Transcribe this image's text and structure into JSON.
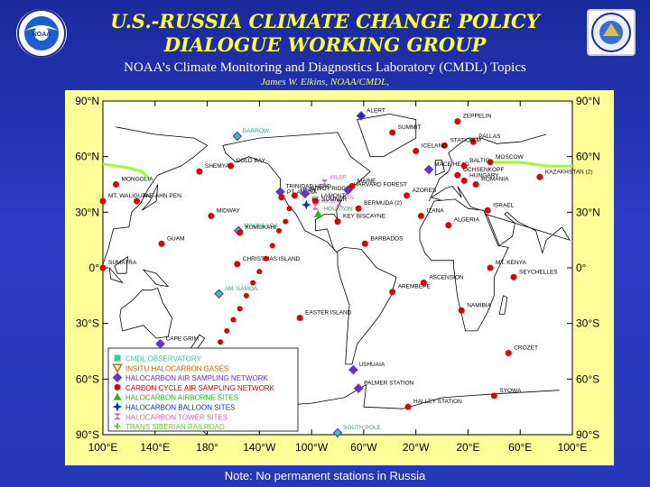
{
  "header": {
    "title_line1": "U.S.-RUSSIA CLIMATE CHANGE POLICY",
    "title_line2": "DIALOGUE WORKING GROUP",
    "subtitle": "NOAA’s Climate Monitoring and Diagnostics Laboratory (CMDL) Topics",
    "author": "James W. Elkins, NOAA/CMDL,"
  },
  "logos": {
    "left": "noaa-logo",
    "right": "department-of-commerce-seal"
  },
  "footer": {
    "note": "Note: No permanent stations in Russia"
  },
  "colors": {
    "background": "#2438b8",
    "title": "#ffff33",
    "frame": "#ffff99",
    "station": "#e00000",
    "cmdl": "#33cc99",
    "halocarbon_air": "#6633cc",
    "airborne": "#22bb22",
    "balloon": "#0033cc",
    "tower": "#cc66cc",
    "railroad": "#99ff33"
  },
  "map": {
    "lat_labels": [
      "90°N",
      "60°N",
      "30°N",
      "0°",
      "30°S",
      "60°S",
      "90°S"
    ],
    "lon_labels": [
      "100°E",
      "140°E",
      "180°",
      "140°W",
      "100°W",
      "60°W",
      "20°W",
      "20°E",
      "60°E",
      "100°E"
    ],
    "legend": [
      {
        "symbol": "square",
        "color": "#33cc99",
        "label": "CMDL OBSERVATORY"
      },
      {
        "symbol": "tri-down",
        "color": "#cc6600",
        "label": "INSITU HALOCARBON GASES"
      },
      {
        "symbol": "diamond",
        "color": "#6633cc",
        "label": "HALOCARBON AIR SAMPLING NETWORK"
      },
      {
        "symbol": "circle",
        "color": "#e00000",
        "label": "CARBON CYCLE AIR SAMPLING NETWORK"
      },
      {
        "symbol": "tri-up",
        "color": "#22bb22",
        "label": "HALOCARBON AIRBORNE SITES"
      },
      {
        "symbol": "star",
        "color": "#0033cc",
        "label": "HALOCARBON BALLOON SITES"
      },
      {
        "symbol": "hourglass",
        "color": "#cc66cc",
        "label": "HALOCARBON TOWER SITES"
      },
      {
        "symbol": "plus",
        "color": "#66cc33",
        "label": "TRANS SIBERIAN RAILROAD"
      }
    ],
    "stations": [
      {
        "name": "ALERT",
        "lon": -62,
        "lat": 82,
        "type": "diamond",
        "color": "#0033cc"
      },
      {
        "name": "BARROW",
        "lon": -157,
        "lat": 71,
        "type": "diamond",
        "color": "#33cc99"
      },
      {
        "name": "ZEPPELIN",
        "lon": 12,
        "lat": 79,
        "type": "circle",
        "color": "#e00000"
      },
      {
        "name": "SUMMIT",
        "lon": -38,
        "lat": 73,
        "type": "circle",
        "color": "#e00000"
      },
      {
        "name": "PALLAS",
        "lon": 24,
        "lat": 68,
        "type": "circle",
        "color": "#e00000"
      },
      {
        "name": "STATION M",
        "lon": 2,
        "lat": 66,
        "type": "circle",
        "color": "#e00000"
      },
      {
        "name": "ICELAND",
        "lon": -20,
        "lat": 63,
        "type": "circle",
        "color": "#e00000"
      },
      {
        "name": "MACE HEAD",
        "lon": -10,
        "lat": 53,
        "type": "diamond",
        "color": "#6633cc"
      },
      {
        "name": "BALTIC",
        "lon": 17,
        "lat": 55,
        "type": "circle",
        "color": "#e00000"
      },
      {
        "name": "MOSCOW",
        "lon": 37,
        "lat": 57,
        "type": "circle",
        "color": "#e00000"
      },
      {
        "name": "OCHSENKOPF",
        "lon": 12,
        "lat": 50,
        "type": "circle",
        "color": "#e00000"
      },
      {
        "name": "HUNGARY",
        "lon": 17,
        "lat": 47,
        "type": "circle",
        "color": "#e00000"
      },
      {
        "name": "ROMANIA",
        "lon": 26,
        "lat": 45,
        "type": "circle",
        "color": "#e00000"
      },
      {
        "name": "KAZAKHSTAN (2)",
        "lon": 75,
        "lat": 49,
        "type": "circle",
        "color": "#e00000"
      },
      {
        "name": "MT. WALIGUAN",
        "lon": 100,
        "lat": 36,
        "type": "circle",
        "color": "#e00000"
      },
      {
        "name": "MONGOLIA",
        "lon": 110,
        "lat": 45,
        "type": "circle",
        "color": "#e00000"
      },
      {
        "name": "TAE-AHN PEN.",
        "lon": 126,
        "lat": 36,
        "type": "circle",
        "color": "#e00000"
      },
      {
        "name": "SHEMYA",
        "lon": 174,
        "lat": 52,
        "type": "circle",
        "color": "#e00000"
      },
      {
        "name": "COLD BAY",
        "lon": -162,
        "lat": 55,
        "type": "circle",
        "color": "#e00000"
      },
      {
        "name": "TRINIDAD HEAD",
        "lon": -124,
        "lat": 41,
        "type": "diamond",
        "color": "#6633cc"
      },
      {
        "name": "PT. ARENA",
        "lon": -123,
        "lat": 38,
        "type": "circle",
        "color": "#e00000"
      },
      {
        "name": "UTAH",
        "lon": -113,
        "lat": 39,
        "type": "circle",
        "color": "#e00000"
      },
      {
        "name": "NIWOT RIDGE",
        "lon": -105,
        "lat": 40,
        "type": "diamond",
        "color": "#6633cc"
      },
      {
        "name": "WLEF",
        "lon": -90,
        "lat": 46,
        "type": "hourglass",
        "color": "#cc66cc"
      },
      {
        "name": "LAMONT",
        "lon": -97,
        "lat": 36,
        "type": "circle",
        "color": "#e00000"
      },
      {
        "name": "HARVARD FOREST",
        "lon": -72,
        "lat": 42,
        "type": "diamond",
        "color": "#6633cc"
      },
      {
        "name": "MAINE",
        "lon": -69,
        "lat": 44,
        "type": "circle",
        "color": "#e00000"
      },
      {
        "name": "WKWT",
        "lon": -97,
        "lat": 33,
        "type": "hourglass",
        "color": "#cc66cc"
      },
      {
        "name": "ITN",
        "lon": -79,
        "lat": 35,
        "type": "hourglass",
        "color": "#cc66cc"
      },
      {
        "name": "FT. SUMNER",
        "lon": -104,
        "lat": 34,
        "type": "star",
        "color": "#0033cc"
      },
      {
        "name": "HOUSTON",
        "lon": -95,
        "lat": 29,
        "type": "tri-up",
        "color": "#22bb22"
      },
      {
        "name": "KEY BISCAYNE",
        "lon": -80,
        "lat": 25,
        "type": "circle",
        "color": "#e00000"
      },
      {
        "name": "BERMUDA (2)",
        "lon": -64,
        "lat": 32,
        "type": "circle",
        "color": "#e00000"
      },
      {
        "name": "AZORES",
        "lon": -27,
        "lat": 39,
        "type": "circle",
        "color": "#e00000"
      },
      {
        "name": "IZANA",
        "lon": -16,
        "lat": 28,
        "type": "circle",
        "color": "#e00000"
      },
      {
        "name": "ALGERIA",
        "lon": 5,
        "lat": 23,
        "type": "circle",
        "color": "#e00000"
      },
      {
        "name": "ISRAEL",
        "lon": 35,
        "lat": 31,
        "type": "circle",
        "color": "#e00000"
      },
      {
        "name": "BARBADOS",
        "lon": -59,
        "lat": 13,
        "type": "circle",
        "color": "#e00000"
      },
      {
        "name": "MIDWAY",
        "lon": -177,
        "lat": 28,
        "type": "circle",
        "color": "#e00000"
      },
      {
        "name": "MAUNA LOA",
        "lon": -156,
        "lat": 20,
        "type": "diamond",
        "color": "#33cc99"
      },
      {
        "name": "KUMUKAHI",
        "lon": -155,
        "lat": 19,
        "type": "circle",
        "color": "#e00000"
      },
      {
        "name": "GUAM",
        "lon": 145,
        "lat": 13,
        "type": "circle",
        "color": "#e00000"
      },
      {
        "name": "CHRISTMAS ISLAND",
        "lon": -157,
        "lat": 2,
        "type": "circle",
        "color": "#e00000"
      },
      {
        "name": "SUMATRA",
        "lon": 100,
        "lat": 0,
        "type": "circle",
        "color": "#e00000"
      },
      {
        "name": "AM. SAMOA",
        "lon": -171,
        "lat": -14,
        "type": "diamond",
        "color": "#33cc99"
      },
      {
        "name": "ASCENSION",
        "lon": -14,
        "lat": -8,
        "type": "circle",
        "color": "#e00000"
      },
      {
        "name": "MT. KENYA",
        "lon": 37,
        "lat": 0,
        "type": "circle",
        "color": "#e00000"
      },
      {
        "name": "SEYCHELLES",
        "lon": 55,
        "lat": -5,
        "type": "circle",
        "color": "#e00000"
      },
      {
        "name": "AREMBEPE",
        "lon": -38,
        "lat": -13,
        "type": "circle",
        "color": "#e00000"
      },
      {
        "name": "NAMIBIA",
        "lon": 15,
        "lat": -23,
        "type": "circle",
        "color": "#e00000"
      },
      {
        "name": "EASTER ISLAND",
        "lon": -109,
        "lat": -27,
        "type": "circle",
        "color": "#e00000"
      },
      {
        "name": "CAPE GRIM",
        "lon": 144,
        "lat": -41,
        "type": "diamond",
        "color": "#6633cc"
      },
      {
        "name": "CROZET",
        "lon": 51,
        "lat": -46,
        "type": "circle",
        "color": "#e00000"
      },
      {
        "name": "USHUAIA",
        "lon": -68,
        "lat": -55,
        "type": "diamond",
        "color": "#6633cc"
      },
      {
        "name": "PALMER STATION",
        "lon": -64,
        "lat": -65,
        "type": "diamond",
        "color": "#6633cc"
      },
      {
        "name": "SYOWA",
        "lon": 40,
        "lat": -69,
        "type": "circle",
        "color": "#e00000"
      },
      {
        "name": "HALLEY STATION",
        "lon": -26,
        "lat": -75,
        "type": "circle",
        "color": "#e00000"
      },
      {
        "name": "SOUTH POLE",
        "lon": -80,
        "lat": -89,
        "type": "diamond",
        "color": "#33cc99"
      }
    ]
  }
}
